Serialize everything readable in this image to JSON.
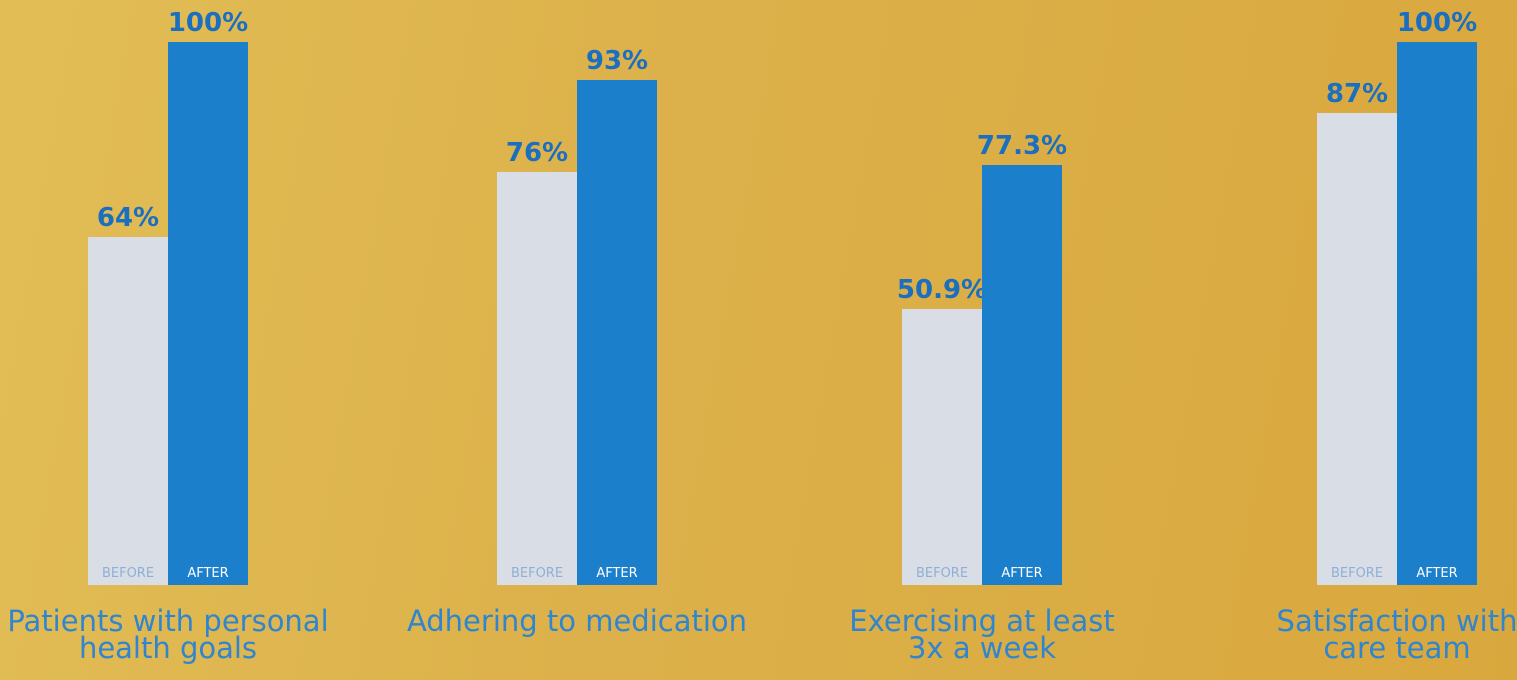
{
  "chart_data": {
    "type": "bar",
    "categories": [
      "Patients with personal\nhealth goals",
      "Adhering to medication",
      "Exercising at least\n3x a week",
      "Satisfaction with\ncare team"
    ],
    "series": [
      {
        "name": "BEFORE",
        "color": "#d9dde6",
        "values": [
          64,
          76,
          50.9,
          87
        ],
        "value_labels": [
          "64%",
          "76%",
          "50.9%",
          "87%"
        ]
      },
      {
        "name": "AFTER",
        "color": "#1b7fcb",
        "values": [
          100,
          93,
          77.3,
          100
        ],
        "value_labels": [
          "100%",
          "93%",
          "77.3%",
          "100%"
        ]
      }
    ],
    "ylim": [
      0,
      100
    ]
  }
}
